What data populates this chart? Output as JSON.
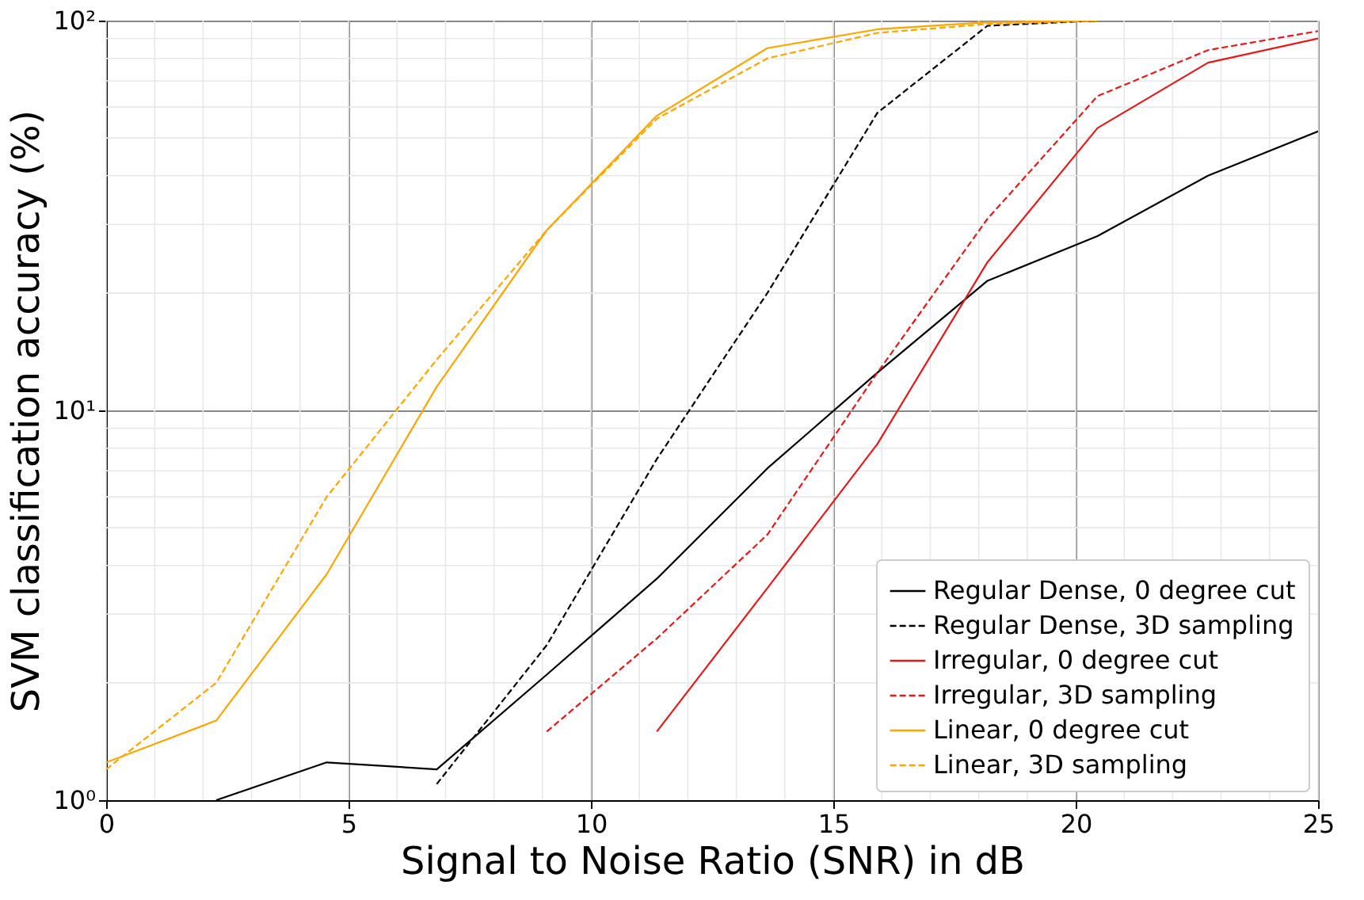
{
  "chart_data": {
    "type": "line",
    "xlabel": "Signal to Noise Ratio (SNR) in dB",
    "ylabel": "SVM classification accuracy (%)",
    "x": [
      0,
      2.27,
      4.55,
      6.82,
      9.09,
      11.36,
      13.64,
      15.91,
      18.18,
      20.45,
      22.73,
      25
    ],
    "series": [
      {
        "name": "Regular Dense, 0 degree cut",
        "color": "#000000",
        "line_style": "solid",
        "values": [
          null,
          1.0,
          1.25,
          1.2,
          2.1,
          3.7,
          7.1,
          12.5,
          21.5,
          28,
          40,
          52
        ]
      },
      {
        "name": "Regular Dense, 3D sampling",
        "color": "#000000",
        "line_style": "dashed",
        "values": [
          null,
          null,
          null,
          1.1,
          2.5,
          7.5,
          20,
          58,
          97,
          100,
          null,
          null
        ]
      },
      {
        "name": "Irregular, 0 degree cut",
        "color": "#e31a1c",
        "line_style": "solid",
        "values": [
          null,
          null,
          null,
          null,
          null,
          1.5,
          3.5,
          8.2,
          24,
          53,
          78,
          90
        ]
      },
      {
        "name": "Irregular, 3D sampling",
        "color": "#e31a1c",
        "line_style": "dashed",
        "values": [
          null,
          null,
          null,
          null,
          1.5,
          2.6,
          4.8,
          12.5,
          31,
          64,
          84,
          94
        ]
      },
      {
        "name": "Linear, 0 degree cut",
        "color": "#ffa500",
        "line_style": "solid",
        "values": [
          1.25,
          1.6,
          3.8,
          11.5,
          29,
          57,
          85,
          95,
          99,
          100,
          null,
          null
        ]
      },
      {
        "name": "Linear, 3D sampling",
        "color": "#ffa500",
        "line_style": "dashed",
        "values": [
          1.2,
          2.0,
          6.0,
          13.5,
          29,
          56,
          80,
          93,
          98,
          100,
          null,
          null
        ]
      }
    ],
    "xlim": [
      0,
      25
    ],
    "xticks": [
      0,
      5,
      10,
      15,
      20,
      25
    ],
    "ylim": [
      1,
      100
    ],
    "yticks": [
      {
        "value": 1,
        "label": "10⁰"
      },
      {
        "value": 10,
        "label": "10¹"
      },
      {
        "value": 100,
        "label": "10²"
      }
    ],
    "log": "y",
    "grid": true,
    "legend": "bottom right",
    "marker": "none"
  }
}
